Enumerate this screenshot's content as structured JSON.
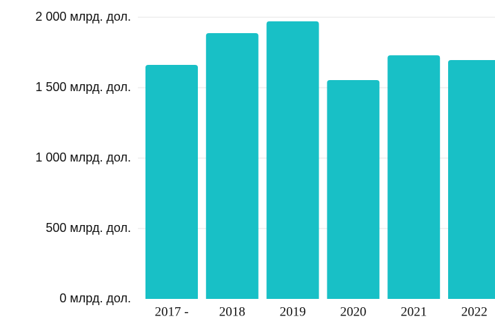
{
  "chart_data": {
    "type": "bar",
    "categories": [
      "2017 -",
      "2018",
      "2019",
      "2020",
      "2021",
      "2022"
    ],
    "values": [
      1662,
      1887,
      1971,
      1554,
      1730,
      1696
    ],
    "color": "#18c0c6",
    "ylim": [
      0,
      2000
    ],
    "yticks": [
      {
        "value": 0,
        "label": "0 млрд. дол."
      },
      {
        "value": 500,
        "label": "500 млрд. дол."
      },
      {
        "value": 1000,
        "label": "1 000 млрд. дол."
      },
      {
        "value": 1500,
        "label": "1 500 млрд. дол."
      },
      {
        "value": 2000,
        "label": "2 000 млрд. дол."
      }
    ],
    "grid": true
  }
}
